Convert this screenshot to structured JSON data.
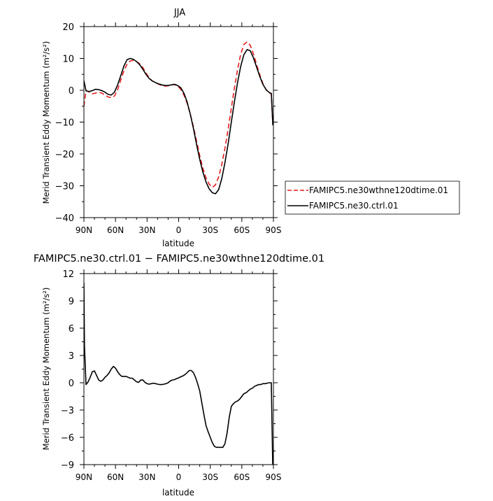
{
  "chart_data": [
    {
      "type": "line",
      "title": "JJA",
      "xlabel": "latitude",
      "ylabel": "Merid Transient Eddy Momentum (m²/s²)",
      "xlim": [
        90,
        -90
      ],
      "ylim": [
        -40,
        20
      ],
      "xticks": [
        90,
        60,
        30,
        0,
        -30,
        -60,
        -90
      ],
      "xtick_labels": [
        "90N",
        "60N",
        "30N",
        "0",
        "30S",
        "60S",
        "90S"
      ],
      "yticks": [
        20,
        10,
        0,
        -10,
        -20,
        -30,
        -40
      ],
      "ytick_labels": [
        "20",
        "10",
        "0",
        "−10",
        "−20",
        "−30",
        "−40"
      ],
      "legend_position": "right",
      "series": [
        {
          "name": "FAMIPC5.ne30wthne120dtime.01",
          "color": "#e41a1c",
          "dash": "dashed",
          "x": [
            90,
            88,
            85,
            82,
            79,
            76,
            73,
            70,
            67,
            64,
            61,
            58,
            55,
            52,
            49,
            46,
            43,
            40,
            37,
            34,
            31,
            28,
            25,
            22,
            19,
            16,
            13,
            10,
            7,
            4,
            1,
            -2,
            -5,
            -8,
            -11,
            -14,
            -17,
            -20,
            -23,
            -26,
            -29,
            -32,
            -35,
            -38,
            -41,
            -44,
            -47,
            -50,
            -53,
            -56,
            -59,
            -62,
            -65,
            -68,
            -71,
            -74,
            -77,
            -80,
            -83,
            -86,
            -88,
            -89.5
          ],
          "y": [
            -5,
            0,
            -0.6,
            -1.1,
            -0.9,
            -0.6,
            -0.9,
            -1.5,
            -2.1,
            -2.3,
            -1.8,
            0.2,
            3.2,
            6.1,
            8.2,
            9.2,
            9.4,
            9.0,
            8.3,
            7.1,
            5.4,
            3.9,
            2.9,
            2.4,
            1.9,
            1.5,
            1.3,
            1.4,
            1.7,
            1.8,
            1.3,
            0.3,
            -1.5,
            -4,
            -7.5,
            -11.5,
            -16,
            -20.5,
            -24.5,
            -27.5,
            -29.5,
            -30.5,
            -29.7,
            -27.2,
            -23.3,
            -18.2,
            -12.1,
            -5.6,
            0.8,
            6.6,
            11.4,
            14.4,
            15.2,
            14.1,
            11.4,
            8.1,
            4.9,
            2.1,
            0.2,
            -0.9,
            -1.0,
            -11
          ]
        },
        {
          "name": "FAMIPC5.ne30.ctrl.01",
          "color": "#000000",
          "dash": "solid",
          "x": [
            90,
            88,
            85,
            82,
            79,
            76,
            73,
            70,
            67,
            64,
            61,
            58,
            55,
            52,
            49,
            46,
            43,
            40,
            37,
            34,
            31,
            28,
            25,
            22,
            19,
            16,
            13,
            10,
            7,
            4,
            1,
            -2,
            -5,
            -8,
            -11,
            -14,
            -17,
            -20,
            -23,
            -26,
            -29,
            -32,
            -35,
            -38,
            -41,
            -44,
            -47,
            -50,
            -53,
            -56,
            -59,
            -62,
            -65,
            -68,
            -71,
            -74,
            -77,
            -80,
            -83,
            -86,
            -88,
            -89.5
          ],
          "y": [
            3,
            -0.2,
            -0.4,
            -0.1,
            0.3,
            0.2,
            -0.1,
            -0.6,
            -1.3,
            -1.5,
            -0.6,
            1.7,
            4.6,
            7.6,
            9.6,
            10.0,
            9.7,
            9.0,
            8.0,
            6.6,
            5.0,
            3.7,
            2.9,
            2.4,
            2.0,
            1.7,
            1.5,
            1.5,
            1.7,
            1.9,
            1.5,
            0.8,
            -0.9,
            -3.6,
            -7.5,
            -12,
            -17,
            -21.7,
            -25.7,
            -28.8,
            -31,
            -32.2,
            -32.5,
            -31.2,
            -27.7,
            -22.7,
            -16.7,
            -10,
            -3.5,
            2.5,
            7.6,
            11.2,
            12.8,
            12.4,
            10.2,
            7.3,
            4.4,
            1.9,
            0.2,
            -0.7,
            -1.0,
            -11
          ]
        }
      ]
    },
    {
      "type": "line",
      "title": "FAMIPC5.ne30.ctrl.01 − FAMIPC5.ne30wthne120dtime.01",
      "xlabel": "latitude",
      "ylabel": "Merid Transient Eddy Momentum (m²/s²)",
      "xlim": [
        90,
        -90
      ],
      "ylim": [
        -9,
        12
      ],
      "xticks": [
        90,
        60,
        30,
        0,
        -30,
        -60,
        -90
      ],
      "xtick_labels": [
        "90N",
        "60N",
        "30N",
        "0",
        "30S",
        "60S",
        "90S"
      ],
      "yticks": [
        12,
        9,
        6,
        3,
        0,
        -3,
        -6,
        -9
      ],
      "ytick_labels": [
        "12",
        "9",
        "6",
        "3",
        "0",
        "−3",
        "−6",
        "−9"
      ],
      "series": [
        {
          "color": "#000000",
          "dash": "solid",
          "x": [
            90,
            89.5,
            88,
            86,
            84,
            82,
            80,
            78,
            76,
            74,
            72,
            70,
            68,
            66,
            64,
            62,
            60,
            58,
            56,
            54,
            52,
            50,
            48,
            46,
            44,
            42,
            40,
            38,
            36,
            34,
            32,
            30,
            28,
            26,
            24,
            22,
            20,
            18,
            16,
            14,
            12,
            10,
            8,
            6,
            4,
            2,
            0,
            -2,
            -4,
            -6,
            -8,
            -10,
            -12,
            -14,
            -16,
            -18,
            -20,
            -22,
            -24,
            -26,
            -28,
            -30,
            -32,
            -34,
            -36,
            -38,
            -40,
            -42,
            -44,
            -46,
            -48,
            -50,
            -52,
            -54,
            -56,
            -58,
            -60,
            -62,
            -64,
            -66,
            -68,
            -70,
            -72,
            -74,
            -76,
            -78,
            -80,
            -82,
            -84,
            -86,
            -88,
            -89.5
          ],
          "y": [
            11,
            4,
            -0.2,
            0.1,
            0.6,
            1.2,
            1.3,
            0.8,
            0.3,
            0.15,
            0.3,
            0.6,
            0.8,
            1.1,
            1.5,
            1.8,
            1.6,
            1.2,
            0.9,
            0.7,
            0.7,
            0.7,
            0.6,
            0.5,
            0.5,
            0.3,
            0.1,
            0.05,
            0.3,
            0.3,
            0.05,
            -0.1,
            -0.15,
            -0.1,
            -0.05,
            -0.1,
            -0.15,
            -0.2,
            -0.2,
            -0.15,
            -0.1,
            0,
            0.2,
            0.3,
            0.35,
            0.45,
            0.55,
            0.65,
            0.75,
            0.9,
            1.1,
            1.35,
            1.35,
            1.1,
            0.6,
            -0.1,
            -0.9,
            -2.2,
            -3.5,
            -4.7,
            -5.4,
            -6.0,
            -6.6,
            -7.0,
            -7.1,
            -7.1,
            -7.1,
            -7.1,
            -6.7,
            -5.5,
            -3.8,
            -2.6,
            -2.3,
            -2.1,
            -2.0,
            -1.8,
            -1.5,
            -1.2,
            -1.1,
            -0.9,
            -0.7,
            -0.6,
            -0.4,
            -0.3,
            -0.2,
            -0.2,
            -0.1,
            -0.1,
            -0.05,
            0,
            0,
            -10
          ]
        }
      ]
    }
  ]
}
